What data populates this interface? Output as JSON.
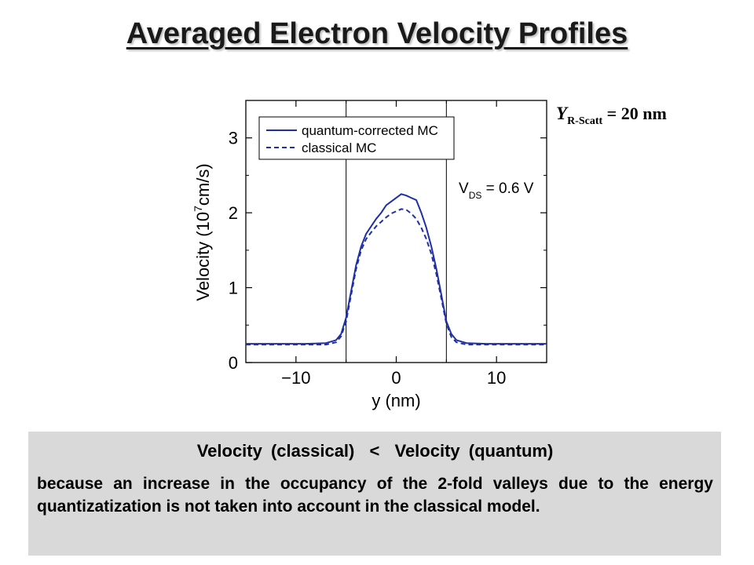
{
  "slide": {
    "title": "Averaged Electron Velocity Profiles"
  },
  "annotation": {
    "symbol": "Y",
    "subscript": "R-Scatt",
    "rest": "= 20 nm"
  },
  "summary": {
    "left": "Velocity (classical)",
    "op": "<",
    "right": "Velocity (quantum)",
    "explanation": "because an increase in the occupancy of the 2-fold valleys due to the energy quantizatization is not taken into account in the classical model."
  },
  "chart_data": {
    "type": "line",
    "xlabel": "y (nm)",
    "ylabel_main": "Velocity (10",
    "ylabel_sup": "7",
    "ylabel_tail": "cm/s)",
    "xlim": [
      -15,
      15
    ],
    "ylim": [
      0,
      3.5
    ],
    "xticks": [
      -10,
      0,
      10
    ],
    "yticks": [
      0,
      1,
      2,
      3
    ],
    "grid": false,
    "legend_position": "top-left",
    "vlines": [
      -5,
      5
    ],
    "text_annotation": {
      "main": "V",
      "sub": "DS",
      "tail": " = 0.6 V"
    },
    "series": [
      {
        "name": "quantum-corrected MC",
        "style": "solid",
        "color": "#1f2fa6",
        "x": [
          -15,
          -12,
          -9,
          -7,
          -6,
          -5.5,
          -5,
          -4.5,
          -4,
          -3.5,
          -3,
          -2.5,
          -2,
          -1.5,
          -1,
          -0.5,
          0,
          0.5,
          1,
          1.5,
          2,
          2.5,
          3,
          3.5,
          4,
          4.5,
          5,
          5.5,
          6,
          7,
          9,
          12,
          15
        ],
        "y": [
          0.25,
          0.25,
          0.25,
          0.26,
          0.3,
          0.38,
          0.6,
          0.95,
          1.3,
          1.55,
          1.72,
          1.82,
          1.92,
          2.0,
          2.1,
          2.15,
          2.2,
          2.25,
          2.23,
          2.2,
          2.17,
          2.0,
          1.8,
          1.55,
          1.25,
          0.9,
          0.55,
          0.38,
          0.3,
          0.26,
          0.25,
          0.25,
          0.25
        ]
      },
      {
        "name": "classical MC",
        "style": "dashed",
        "color": "#1f2fa6",
        "x": [
          -15,
          -12,
          -9,
          -7,
          -6,
          -5.5,
          -5,
          -4.5,
          -4,
          -3.5,
          -3,
          -2.5,
          -2,
          -1.5,
          -1,
          -0.5,
          0,
          0.5,
          1,
          1.5,
          2,
          2.5,
          3,
          3.5,
          4,
          4.5,
          5,
          5.5,
          6,
          7,
          9,
          12,
          15
        ],
        "y": [
          0.24,
          0.24,
          0.24,
          0.24,
          0.27,
          0.35,
          0.55,
          0.9,
          1.25,
          1.5,
          1.65,
          1.74,
          1.82,
          1.88,
          1.94,
          1.99,
          2.02,
          2.05,
          2.04,
          1.99,
          1.92,
          1.8,
          1.65,
          1.45,
          1.18,
          0.85,
          0.52,
          0.34,
          0.27,
          0.24,
          0.24,
          0.24,
          0.24
        ]
      }
    ]
  }
}
